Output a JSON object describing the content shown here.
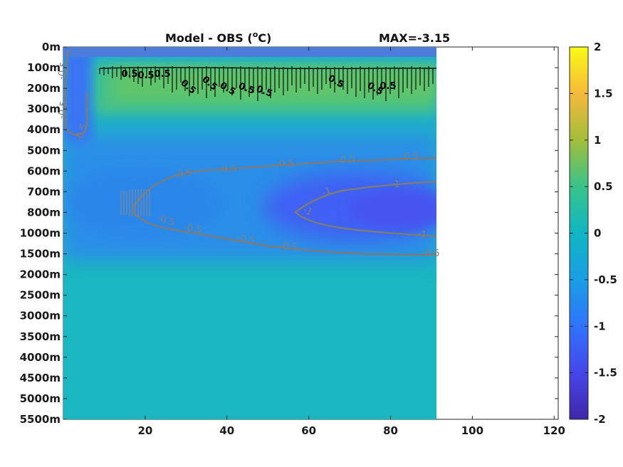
{
  "chart_data": {
    "type": "heatmap",
    "title": "Model - OBS (",
    "title_unit_sup": "o",
    "title_unit": "C)",
    "annotation": "MAX=-3.15",
    "x_ticks": [
      20,
      40,
      60,
      80,
      100,
      120
    ],
    "xlim": [
      0,
      121
    ],
    "data_x_range": [
      1,
      91
    ],
    "y_tick_labels": [
      "0m",
      "100m",
      "200m",
      "300m",
      "400m",
      "500m",
      "600m",
      "700m",
      "800m",
      "1000m",
      "1500m",
      "2000m",
      "2500m",
      "3000m",
      "3500m",
      "4000m",
      "4500m",
      "5000m",
      "5500m"
    ],
    "colorbar": {
      "colormap": "parula",
      "range": [
        -2,
        2
      ],
      "ticks": [
        "-2",
        "-1.5",
        "-1",
        "-0.5",
        "0",
        "0.5",
        "1",
        "1.5",
        "2"
      ]
    },
    "contours": [
      {
        "level": -0.5,
        "color": "#808080",
        "labels": [
          "-0.5",
          "-0.5",
          "-0.5",
          "-0.5",
          "-0.5",
          "-0.5",
          "-0.5",
          "-0.5",
          "-0.5",
          "-0.5",
          "-0.5",
          "-0.5",
          "-0.5"
        ]
      },
      {
        "level": -1,
        "color": "#808080",
        "labels": [
          "-1",
          "-1",
          "-1",
          "-1"
        ]
      },
      {
        "level": 0.5,
        "color": "#000000",
        "labels": [
          "0.5",
          "0.5",
          "0.5",
          "0.5",
          "0.5",
          "0.5",
          "0.5",
          "0.5",
          "0.5",
          "0.5",
          "0.5"
        ]
      }
    ]
  }
}
